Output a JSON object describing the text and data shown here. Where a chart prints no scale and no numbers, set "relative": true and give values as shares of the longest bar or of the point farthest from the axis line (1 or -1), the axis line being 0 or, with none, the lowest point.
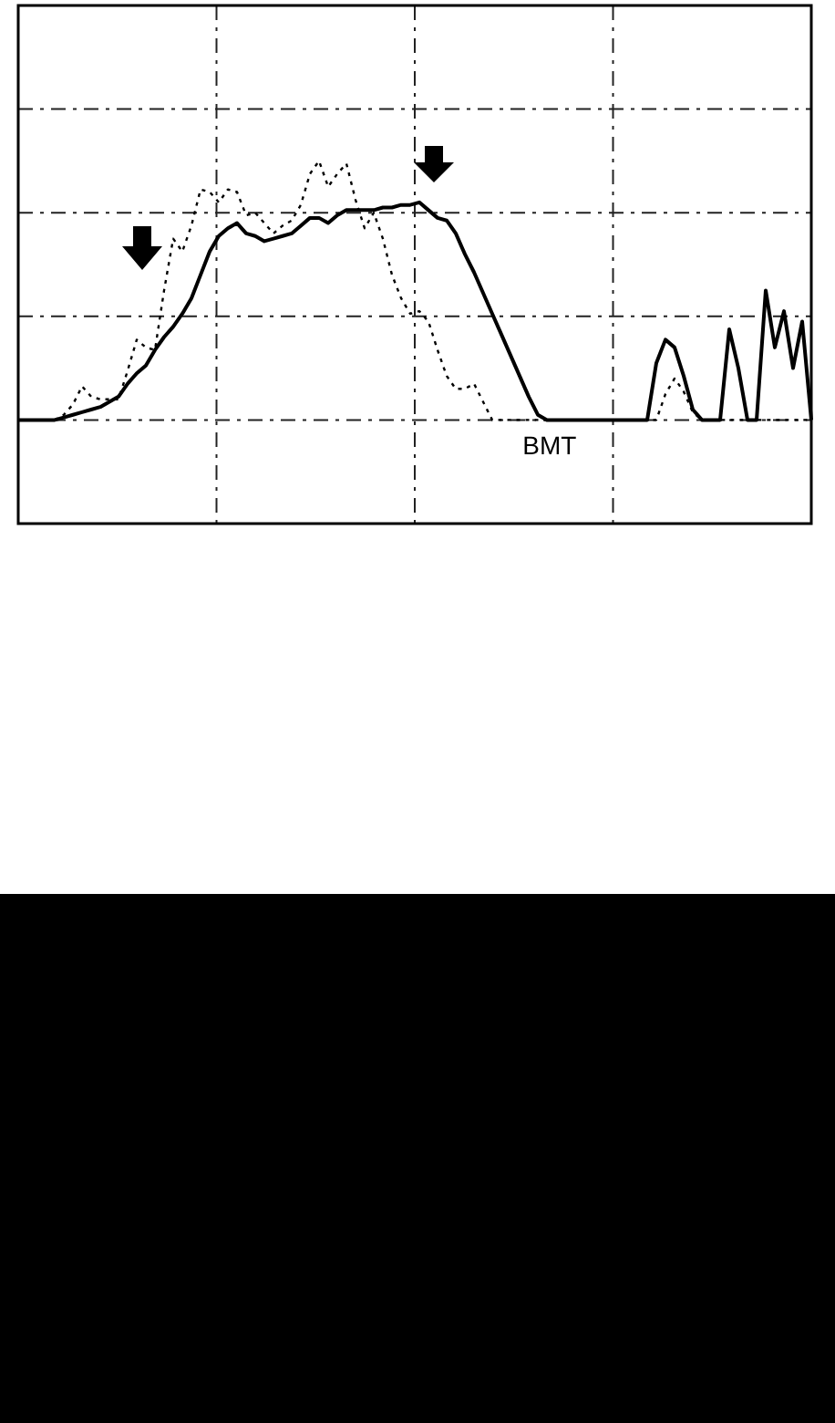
{
  "chart_data": {
    "type": "line",
    "relative": true,
    "grid": true,
    "legend": false,
    "marker": "none",
    "categories": [
      null,
      null,
      null,
      null,
      null,
      null,
      null,
      null,
      null,
      null,
      null,
      null,
      null,
      null,
      null,
      null,
      null,
      null,
      null,
      null,
      null,
      null,
      null,
      null,
      null,
      null,
      null,
      null,
      null,
      null,
      null,
      null,
      null,
      null,
      null,
      null,
      null,
      null,
      null,
      null,
      null,
      null,
      null,
      null,
      null,
      null,
      null,
      null,
      null,
      null,
      null,
      null,
      null,
      null,
      null,
      null,
      null,
      null,
      null,
      null,
      null,
      null,
      null,
      null,
      null,
      null,
      null,
      null,
      null,
      null,
      null,
      null,
      null,
      null,
      null,
      null,
      null,
      null,
      null,
      null,
      null,
      null,
      null,
      null,
      null,
      null,
      null,
      null
    ],
    "series": [
      {
        "color": "#000000",
        "line_style": "solid",
        "values": [
          0,
          0,
          0,
          0,
          0,
          0.01,
          0.02,
          0.03,
          0.04,
          0.05,
          0.07,
          0.09,
          0.14,
          0.18,
          0.21,
          0.27,
          0.32,
          0.36,
          0.41,
          0.47,
          0.56,
          0.65,
          0.71,
          0.74,
          0.76,
          0.72,
          0.71,
          0.69,
          0.7,
          0.71,
          0.72,
          0.75,
          0.78,
          0.78,
          0.76,
          0.79,
          0.81,
          0.81,
          0.81,
          0.81,
          0.82,
          0.82,
          0.83,
          0.83,
          0.84,
          0.81,
          0.78,
          0.77,
          0.72,
          0.64,
          0.57,
          0.49,
          0.41,
          0.33,
          0.25,
          0.17,
          0.09,
          0.02,
          0,
          0,
          0,
          0,
          0,
          0,
          0,
          0,
          0,
          0,
          0,
          0,
          0.22,
          0.31,
          0.28,
          0.17,
          0.04,
          0,
          0,
          0,
          0.35,
          0.2,
          0,
          0,
          0.5,
          0.28,
          0.42,
          0.2,
          0.38,
          0
        ]
      },
      {
        "color": "#000000",
        "line_style": "dotted",
        "values": [
          0,
          0,
          0,
          0,
          0,
          0.02,
          0.06,
          0.13,
          0.09,
          0.08,
          0.08,
          0.08,
          0.19,
          0.31,
          0.28,
          0.27,
          0.5,
          0.7,
          0.65,
          0.75,
          0.89,
          0.88,
          0.84,
          0.89,
          0.88,
          0.79,
          0.8,
          0.76,
          0.72,
          0.75,
          0.77,
          0.83,
          0.95,
          1,
          0.9,
          0.95,
          0.99,
          0.85,
          0.74,
          0.8,
          0.7,
          0.56,
          0.47,
          0.41,
          0.42,
          0.38,
          0.27,
          0.17,
          0.12,
          0.12,
          0.14,
          0.07,
          0,
          0,
          0,
          0,
          0,
          0,
          0,
          0,
          0,
          0,
          0,
          0,
          0,
          0,
          0,
          0,
          0,
          0,
          0,
          0.1,
          0.16,
          0.11,
          0.03,
          0,
          0,
          0,
          0,
          0,
          0,
          0,
          0,
          0,
          0,
          0,
          0,
          0
        ]
      }
    ],
    "annotations": [
      "BMT"
    ]
  }
}
